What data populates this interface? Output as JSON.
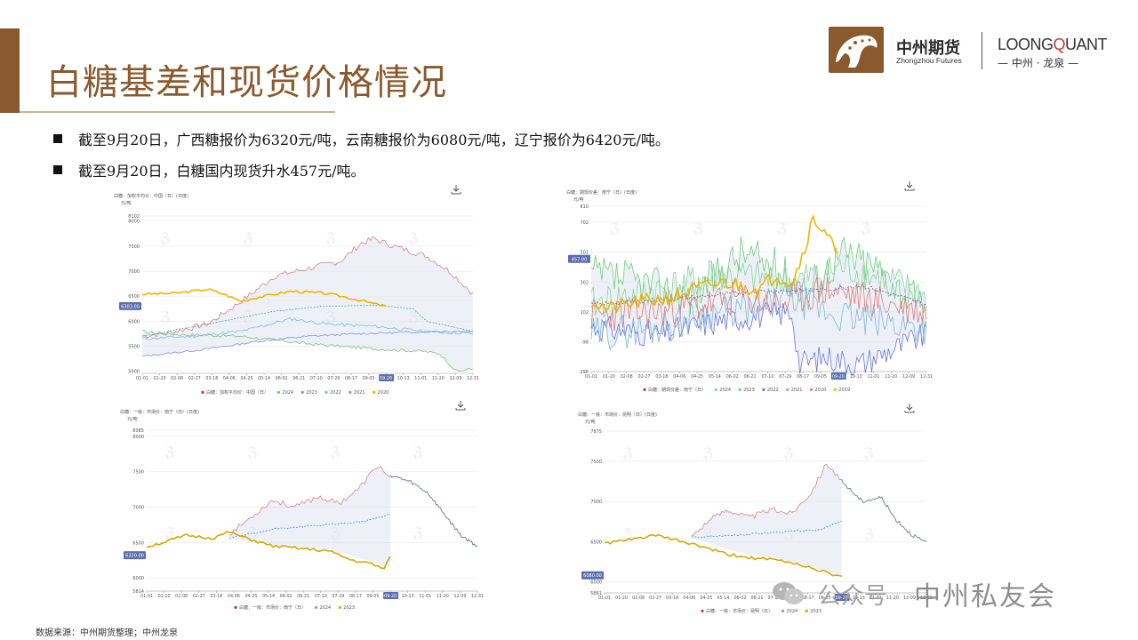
{
  "slide": {
    "title": "白糖基差和现货价格情况",
    "logo": {
      "cn_name": "中州期货",
      "en_name": "Zhongzhou Futures",
      "lq_name_a": "LOONG",
      "lq_name_b": "Q",
      "lq_name_c": "UANT",
      "lq_sub": "— 中州 · 龙泉 —",
      "brand_color": "#8a5a2e"
    },
    "bullets": [
      "截至9月20日，广西糖报价为6320元/吨，云南糖报价为6080元/吨，辽宁报价为6420元/吨。",
      "截至9月20日，白糖国内现货升水457元/吨。"
    ],
    "source": "数据来源：中州期货整理；中州龙泉",
    "watermark": {
      "a": "公众号",
      "b": "中州私友会"
    }
  },
  "chart_data": [
    {
      "type": "line",
      "title": "白糖：加权平均价：中国（日）(日度)",
      "unit": "元/吨",
      "ylim": [
        4960,
        8102
      ],
      "yticks": [
        "8102",
        "8000",
        "7500",
        "7000",
        "6500",
        "6000",
        "5500",
        "5000"
      ],
      "xticks": [
        "01-01",
        "01-20",
        "02-08",
        "02-27",
        "03-18",
        "04-06",
        "04-25",
        "05-14",
        "06-02",
        "06-21",
        "07-10",
        "07-29",
        "08-17",
        "09-05",
        "09-20",
        "10-13",
        "11-01",
        "11-20",
        "12-09",
        "12-31"
      ],
      "current_label": "6303.00",
      "current_x": "09-20",
      "legend": [
        "白糖：加权平均价：中国（日）",
        "2024",
        "2023",
        "2022",
        "2021",
        "2020"
      ],
      "colors": {
        "2024": "#f0b400",
        "2023": "#d9828a",
        "2022": "#7fb8d8",
        "2021": "#8a8fd6",
        "2020": "#7cc47a",
        "mean": "#4aa5a0"
      }
    },
    {
      "type": "line",
      "title": "白糖：期现价差：南宁（日）(日度)",
      "unit": "元/吨",
      "ylim": [
        -298,
        810
      ],
      "yticks": [
        "810",
        "702",
        "502",
        "302",
        "102",
        "-98",
        "-298"
      ],
      "xticks": [
        "01-01",
        "01-20",
        "02-08",
        "02-27",
        "03-18",
        "04-06",
        "04-25",
        "05-14",
        "06-02",
        "06-21",
        "07-10",
        "07-29",
        "08-17",
        "09-05",
        "09-20",
        "10-13",
        "11-01",
        "11-20",
        "12-09",
        "12-31"
      ],
      "current_label": "457.00",
      "current_x": "09-20",
      "legend": [
        "白糖：期现价差：南宁（日）",
        "2024",
        "2023",
        "2022",
        "2021",
        "2020",
        "2019"
      ],
      "colors": {
        "2024": "#f0b400",
        "2023": "#e07a7a",
        "2022": "#7fb8d8",
        "2021": "#6b73d8",
        "2020": "#6fcf7a",
        "2019": "#8bd49a",
        "mean": "#6a5aa8"
      }
    },
    {
      "type": "line",
      "title": "白糖：一级：市场价：南宁（日）(日度)",
      "unit": "元/吨",
      "ylim": [
        5814,
        8085
      ],
      "yticks": [
        "8085",
        "8000",
        "7500",
        "7000",
        "6500",
        "6000",
        "5814"
      ],
      "xticks": [
        "01-01",
        "01-20",
        "02-08",
        "02-27",
        "03-18",
        "04-06",
        "04-25",
        "05-14",
        "06-02",
        "06-21",
        "07-10",
        "07-29",
        "08-17",
        "09-05",
        "09-20",
        "10-13",
        "11-01",
        "11-20",
        "12-09",
        "12-31"
      ],
      "current_label": "6320.00",
      "current_x": "09-20",
      "legend": [
        "白糖：一级：市场价：南宁（日）",
        "2024",
        "2023"
      ],
      "colors": {
        "2024": "#d4a800",
        "2023": "#d9828a",
        "mean": "#3a8fd8",
        "after": "#5a6a8a"
      }
    },
    {
      "type": "line",
      "title": "白糖：一级：市场价：昆明（日）(日度)",
      "unit": "元/吨",
      "ylim": [
        5861,
        7875
      ],
      "yticks": [
        "7875",
        "7500",
        "7000",
        "6500",
        "6000",
        "5861"
      ],
      "xticks": [
        "01-01",
        "01-20",
        "02-08",
        "02-27",
        "03-18",
        "04-06",
        "04-25",
        "05-14",
        "06-02",
        "06-21",
        "07-10",
        "07-29",
        "08-17",
        "09-05",
        "09-20",
        "10-13",
        "11-01",
        "11-20",
        "12-09",
        "12-31"
      ],
      "current_label": "6080.00",
      "current_x": "09-20",
      "legend": [
        "白糖：一级：市场价：昆明（日）",
        "2024",
        "2023"
      ],
      "colors": {
        "2024": "#d4a800",
        "2023": "#d9828a",
        "mean": "#3a8fd8",
        "after": "#5a6a8a"
      }
    }
  ]
}
